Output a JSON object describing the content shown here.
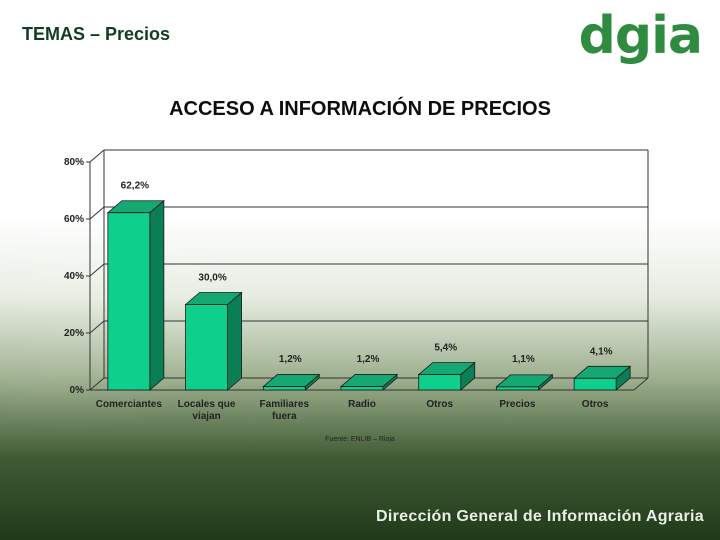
{
  "header": {
    "topic": "TEMAS – Precios",
    "logo_text": "dgia"
  },
  "footer": {
    "org_name": "Dirección General de Información Agraria"
  },
  "chart_data": {
    "type": "bar",
    "title": "ACCESO A INFORMACIÓN DE PRECIOS",
    "categories": [
      [
        "Comerciantes"
      ],
      [
        "Locales que",
        "viajan"
      ],
      [
        "Familiares",
        "fuera"
      ],
      [
        "Radio"
      ],
      [
        "Otros"
      ],
      [
        "Precios"
      ],
      [
        "Otros"
      ]
    ],
    "values": [
      62.2,
      30.0,
      1.2,
      1.2,
      5.4,
      1.1,
      4.1
    ],
    "value_labels": [
      "62,2%",
      "30,0%",
      "1,2%",
      "1,2%",
      "5,4%",
      "1,1%",
      "4,1%"
    ],
    "y_ticks": [
      0,
      20,
      40,
      60,
      80
    ],
    "y_tick_labels": [
      "0%",
      "20%",
      "40%",
      "60%",
      "80%"
    ],
    "ylim": [
      0,
      80
    ],
    "source": "Fuente: ENLIB – Rioja",
    "colors": {
      "bar_front": "#0fcf8c",
      "bar_side": "#0a7f55",
      "bar_top": "#15a872"
    }
  }
}
